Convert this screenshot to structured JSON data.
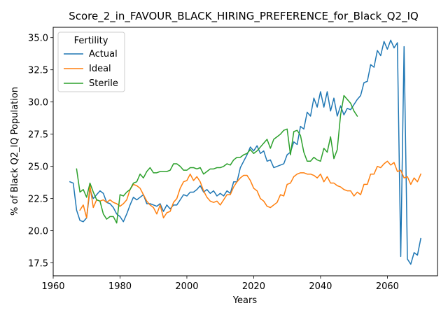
{
  "chart_data": {
    "type": "line",
    "title": "Score_2_in_FAVOUR_BLACK_HIRING_PREFERENCE_for_Black_Q2_IQ",
    "xlabel": "Years",
    "ylabel": "% of Black Q2_IQ Population",
    "xlim": [
      1960,
      2075
    ],
    "ylim": [
      16.5,
      35.8
    ],
    "xticks": [
      1960,
      1980,
      2000,
      2020,
      2040,
      2060
    ],
    "yticks": [
      17.5,
      20.0,
      22.5,
      25.0,
      27.5,
      30.0,
      32.5,
      35.0
    ],
    "xtick_labels": [
      "1960",
      "1980",
      "2000",
      "2020",
      "2040",
      "2060"
    ],
    "ytick_labels": [
      "17.5",
      "20.0",
      "22.5",
      "25.0",
      "27.5",
      "30.0",
      "32.5",
      "35.0"
    ],
    "grid": false,
    "legend": {
      "title": "Fertility",
      "placement": "top-left",
      "entries": [
        "Actual",
        "Ideal",
        "Sterile"
      ]
    },
    "series": [
      {
        "name": "Actual",
        "color": "#1f77b4",
        "x": [
          1965,
          1966,
          1967,
          1968,
          1969,
          1970,
          1971,
          1972,
          1973,
          1974,
          1975,
          1976,
          1977,
          1978,
          1979,
          1980,
          1981,
          1982,
          1983,
          1984,
          1985,
          1986,
          1987,
          1988,
          1989,
          1990,
          1991,
          1992,
          1993,
          1994,
          1995,
          1996,
          1997,
          1998,
          1999,
          2000,
          2001,
          2002,
          2003,
          2004,
          2005,
          2006,
          2007,
          2008,
          2009,
          2010,
          2011,
          2012,
          2013,
          2014,
          2015,
          2016,
          2017,
          2018,
          2019,
          2020,
          2021,
          2022,
          2023,
          2024,
          2025,
          2026,
          2027,
          2028,
          2029,
          2030,
          2031,
          2032,
          2033,
          2034,
          2035,
          2036,
          2037,
          2038,
          2039,
          2040,
          2041,
          2042,
          2043,
          2044,
          2045,
          2046,
          2047,
          2048,
          2049,
          2050,
          2051,
          2052,
          2053,
          2054,
          2055,
          2056,
          2057,
          2058,
          2059,
          2060,
          2061,
          2062,
          2063,
          2064,
          2065,
          2066,
          2067,
          2068,
          2069,
          2070
        ],
        "y": [
          23.8,
          23.7,
          21.6,
          20.8,
          20.7,
          21.0,
          23.2,
          22.5,
          22.8,
          23.1,
          22.9,
          22.2,
          22.1,
          21.8,
          21.3,
          21.1,
          20.7,
          21.3,
          22.0,
          22.6,
          22.4,
          22.6,
          22.8,
          22.1,
          22.1,
          22.0,
          21.9,
          22.1,
          21.5,
          22.0,
          21.7,
          22.0,
          22.0,
          22.4,
          22.8,
          22.7,
          23.0,
          23.0,
          23.2,
          23.5,
          23.0,
          23.2,
          22.9,
          23.1,
          22.7,
          22.9,
          22.7,
          23.1,
          22.9,
          23.8,
          23.8,
          24.9,
          25.4,
          25.9,
          26.5,
          26.2,
          26.6,
          26.0,
          26.2,
          25.4,
          25.5,
          24.9,
          25.0,
          25.1,
          25.2,
          25.9,
          26.1,
          26.9,
          26.7,
          28.1,
          27.9,
          29.2,
          28.9,
          30.3,
          29.6,
          30.8,
          29.6,
          30.8,
          29.3,
          30.3,
          28.9,
          29.7,
          29.0,
          29.5,
          29.4,
          29.8,
          30.2,
          30.5,
          31.5,
          31.6,
          32.9,
          32.7,
          34.0,
          33.6,
          34.7,
          34.1,
          34.8,
          34.2,
          34.6,
          18.0,
          34.3,
          17.8,
          17.4,
          18.3,
          18.1,
          19.4
        ]
      },
      {
        "name": "Ideal",
        "color": "#ff7f0e",
        "x": [
          1968,
          1969,
          1970,
          1971,
          1972,
          1973,
          1974,
          1975,
          1976,
          1977,
          1978,
          1979,
          1980,
          1981,
          1982,
          1983,
          1984,
          1985,
          1986,
          1987,
          1988,
          1989,
          1990,
          1991,
          1992,
          1993,
          1994,
          1995,
          1996,
          1997,
          1998,
          1999,
          2000,
          2001,
          2002,
          2003,
          2004,
          2005,
          2006,
          2007,
          2008,
          2009,
          2010,
          2011,
          2012,
          2013,
          2014,
          2015,
          2016,
          2017,
          2018,
          2019,
          2020,
          2021,
          2022,
          2023,
          2024,
          2025,
          2026,
          2027,
          2028,
          2029,
          2030,
          2031,
          2032,
          2033,
          2034,
          2035,
          2036,
          2037,
          2038,
          2039,
          2040,
          2041,
          2042,
          2043,
          2044,
          2045,
          2046,
          2047,
          2048,
          2049,
          2050,
          2051,
          2052,
          2053,
          2054,
          2055,
          2056,
          2057,
          2058,
          2059,
          2060,
          2061,
          2062,
          2063,
          2064,
          2065,
          2066,
          2067,
          2068,
          2069,
          2070
        ],
        "y": [
          21.6,
          22.0,
          21.0,
          23.5,
          21.8,
          22.4,
          22.3,
          22.4,
          22.2,
          22.4,
          22.2,
          22.1,
          21.9,
          22.1,
          22.4,
          23.2,
          23.6,
          23.5,
          23.3,
          22.8,
          22.3,
          22.0,
          21.8,
          21.3,
          22.0,
          21.0,
          21.4,
          21.5,
          22.2,
          22.5,
          23.3,
          23.8,
          23.9,
          24.4,
          23.9,
          24.2,
          23.8,
          23.1,
          22.6,
          22.3,
          22.2,
          22.3,
          22.0,
          22.4,
          22.8,
          22.8,
          23.4,
          23.8,
          24.1,
          24.3,
          24.3,
          23.9,
          23.3,
          23.1,
          22.5,
          22.3,
          21.9,
          21.8,
          22.0,
          22.2,
          22.8,
          22.7,
          23.6,
          23.7,
          24.2,
          24.4,
          24.5,
          24.5,
          24.4,
          24.4,
          24.3,
          24.1,
          24.4,
          23.8,
          24.2,
          23.7,
          23.7,
          23.5,
          23.4,
          23.2,
          23.1,
          23.1,
          22.7,
          23.0,
          22.8,
          23.6,
          23.6,
          24.4,
          24.4,
          25.0,
          24.9,
          25.2,
          25.4,
          25.1,
          25.3,
          24.6,
          24.7,
          24.1,
          24.2,
          23.6,
          24.1,
          23.8,
          24.4
        ]
      },
      {
        "name": "Sterile",
        "color": "#2ca02c",
        "x": [
          1967,
          1968,
          1969,
          1970,
          1971,
          1972,
          1973,
          1974,
          1975,
          1976,
          1977,
          1978,
          1979,
          1980,
          1981,
          1982,
          1983,
          1984,
          1985,
          1986,
          1987,
          1988,
          1989,
          1990,
          1991,
          1992,
          1993,
          1994,
          1995,
          1996,
          1997,
          1998,
          1999,
          2000,
          2001,
          2002,
          2003,
          2004,
          2005,
          2006,
          2007,
          2008,
          2009,
          2010,
          2011,
          2012,
          2013,
          2014,
          2015,
          2016,
          2017,
          2018,
          2019,
          2020,
          2021,
          2022,
          2023,
          2024,
          2025,
          2026,
          2027,
          2028,
          2029,
          2030,
          2031,
          2032,
          2033,
          2034,
          2035,
          2036,
          2037,
          2038,
          2039,
          2040,
          2041,
          2042,
          2043,
          2044,
          2045,
          2046,
          2047,
          2048,
          2049,
          2050,
          2051
        ],
        "y": [
          24.8,
          23.0,
          23.2,
          22.6,
          23.7,
          23.0,
          22.4,
          22.3,
          21.3,
          20.9,
          21.1,
          21.1,
          20.6,
          22.8,
          22.7,
          23.0,
          23.2,
          23.7,
          23.8,
          24.4,
          24.1,
          24.6,
          24.9,
          24.5,
          24.5,
          24.6,
          24.6,
          24.6,
          24.7,
          25.2,
          25.2,
          25.0,
          24.7,
          24.7,
          24.9,
          24.9,
          24.8,
          24.9,
          24.4,
          24.6,
          24.8,
          24.8,
          24.9,
          24.9,
          25.0,
          25.2,
          25.1,
          25.5,
          25.7,
          25.7,
          25.9,
          26.0,
          26.3,
          26.0,
          26.2,
          26.5,
          26.8,
          27.1,
          26.4,
          27.1,
          27.3,
          27.5,
          27.8,
          27.9,
          25.9,
          27.7,
          27.8,
          27.4,
          26.1,
          25.4,
          25.4,
          25.7,
          25.5,
          25.4,
          26.4,
          26.1,
          27.3,
          25.6,
          26.3,
          29.0,
          30.5,
          30.2,
          29.9,
          29.3,
          28.9
        ]
      }
    ]
  }
}
